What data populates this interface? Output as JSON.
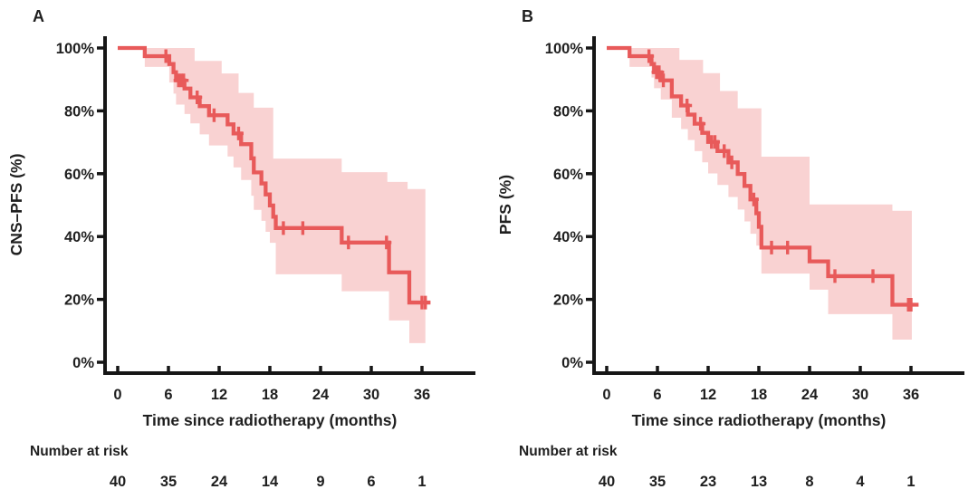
{
  "chart_data": {
    "type": "line",
    "subtype": "kaplan_meier_survival_with_confidence_band",
    "grid": false,
    "legend": "none",
    "colors": {
      "curve": "#E85A5A",
      "band": "#F9D2D2",
      "axis": "#161616",
      "text": "#1F1F1F"
    },
    "x_axis": {
      "ticks": [
        0,
        6,
        12,
        18,
        24,
        30,
        36
      ],
      "range": [
        0,
        42
      ]
    },
    "y_axis": {
      "tick_labels": [
        "100%",
        "80%",
        "60%",
        "40%",
        "20%",
        "0%"
      ],
      "tick_values": [
        100,
        80,
        60,
        40,
        20,
        0
      ],
      "range": [
        0,
        100
      ]
    },
    "panels": [
      {
        "label": "A",
        "y_axis_label": "CNS–PFS (%)",
        "x_axis_label": "Time since radiotherapy (months)",
        "number_at_risk_label": "Number at risk",
        "number_at_risk": [
          "40",
          "35",
          "24",
          "14",
          "9",
          "6",
          "1"
        ],
        "x_tick_labels": [
          "0",
          "6",
          "12",
          "18",
          "24",
          "30",
          "36"
        ],
        "steps": [
          [
            3.2,
            97.4
          ],
          [
            6.1,
            94.9
          ],
          [
            6.6,
            92.3
          ],
          [
            6.9,
            89.7
          ],
          [
            7.9,
            87.1
          ],
          [
            8.6,
            84.3
          ],
          [
            9.7,
            81.5
          ],
          [
            10.8,
            78.6
          ],
          [
            13.0,
            75.7
          ],
          [
            13.7,
            72.8
          ],
          [
            14.6,
            69.4
          ],
          [
            15.8,
            64.9
          ],
          [
            16.1,
            60.4
          ],
          [
            17.0,
            56.9
          ],
          [
            17.5,
            53.4
          ],
          [
            18.0,
            49.9
          ],
          [
            18.4,
            46.3
          ],
          [
            18.7,
            42.7
          ],
          [
            26.5,
            38.1
          ],
          [
            32.1,
            28.6
          ],
          [
            34.5,
            19.0
          ]
        ],
        "censors": [
          [
            5.7,
            97.4
          ],
          [
            7.2,
            89.7
          ],
          [
            7.5,
            89.7
          ],
          [
            7.8,
            89.7
          ],
          [
            9.4,
            84.3
          ],
          [
            11.4,
            78.6
          ],
          [
            14.3,
            72.8
          ],
          [
            19.6,
            42.7
          ],
          [
            21.9,
            42.7
          ],
          [
            27.3,
            38.1
          ],
          [
            31.8,
            38.1
          ],
          [
            36.0,
            19.0
          ],
          [
            36.4,
            19.0
          ]
        ],
        "band_upper": [
          [
            3.2,
            100
          ],
          [
            9.1,
            95.9
          ],
          [
            12.3,
            91.9
          ],
          [
            14.3,
            85.7
          ],
          [
            16.1,
            81.0
          ],
          [
            18.4,
            64.8
          ],
          [
            26.5,
            60.5
          ],
          [
            31.9,
            57.4
          ],
          [
            34.3,
            55.1
          ]
        ],
        "band_lower": [
          [
            3.2,
            94.0
          ],
          [
            6.1,
            89.0
          ],
          [
            6.6,
            85.5
          ],
          [
            6.9,
            82.0
          ],
          [
            7.9,
            79.0
          ],
          [
            8.6,
            76.0
          ],
          [
            9.7,
            72.5
          ],
          [
            10.8,
            69.0
          ],
          [
            13.0,
            65.5
          ],
          [
            13.7,
            62.0
          ],
          [
            14.6,
            58.0
          ],
          [
            15.8,
            53.0
          ],
          [
            16.1,
            48.5
          ],
          [
            17.0,
            45.0
          ],
          [
            17.5,
            41.5
          ],
          [
            18.0,
            38.0
          ],
          [
            18.7,
            28.0
          ],
          [
            26.5,
            22.6
          ],
          [
            32.1,
            13.3
          ],
          [
            34.5,
            6.1
          ]
        ],
        "line_end": 37.0,
        "band_end": 36.4
      },
      {
        "label": "B",
        "y_axis_label": "PFS (%)",
        "x_axis_label": "Time since radiotherapy (months)",
        "number_at_risk_label": "Number at risk",
        "number_at_risk": [
          "40",
          "35",
          "23",
          "13",
          "8",
          "4",
          "1"
        ],
        "x_tick_labels": [
          "0",
          "6",
          "12",
          "18",
          "24",
          "30",
          "36"
        ],
        "steps": [
          [
            2.7,
            97.4
          ],
          [
            5.3,
            94.9
          ],
          [
            5.6,
            92.3
          ],
          [
            6.4,
            89.7
          ],
          [
            7.7,
            84.6
          ],
          [
            8.8,
            81.7
          ],
          [
            9.6,
            78.8
          ],
          [
            10.4,
            75.9
          ],
          [
            11.3,
            73.0
          ],
          [
            12.0,
            70.1
          ],
          [
            13.1,
            67.2
          ],
          [
            14.4,
            63.6
          ],
          [
            15.5,
            59.9
          ],
          [
            16.3,
            56.1
          ],
          [
            17.0,
            51.8
          ],
          [
            17.7,
            47.4
          ],
          [
            18.0,
            43.1
          ],
          [
            18.3,
            36.5
          ],
          [
            24.0,
            32.1
          ],
          [
            26.2,
            27.4
          ],
          [
            33.8,
            18.3
          ]
        ],
        "censors": [
          [
            5.0,
            97.4
          ],
          [
            5.9,
            92.3
          ],
          [
            6.2,
            92.3
          ],
          [
            6.7,
            89.7
          ],
          [
            9.5,
            81.7
          ],
          [
            11.1,
            75.9
          ],
          [
            12.4,
            70.1
          ],
          [
            12.8,
            70.1
          ],
          [
            13.9,
            67.2
          ],
          [
            14.8,
            63.6
          ],
          [
            17.4,
            51.8
          ],
          [
            19.5,
            36.5
          ],
          [
            21.4,
            36.5
          ],
          [
            27.0,
            27.4
          ],
          [
            31.5,
            27.4
          ],
          [
            35.7,
            18.3
          ],
          [
            36.0,
            18.3
          ]
        ],
        "band_upper": [
          [
            2.7,
            100
          ],
          [
            8.6,
            96.2
          ],
          [
            11.4,
            92.0
          ],
          [
            13.4,
            86.3
          ],
          [
            15.5,
            80.8
          ],
          [
            18.3,
            65.4
          ],
          [
            24.0,
            50.2
          ],
          [
            33.8,
            48.2
          ]
        ],
        "band_lower": [
          [
            2.7,
            94.0
          ],
          [
            5.3,
            90.6
          ],
          [
            5.6,
            87.2
          ],
          [
            6.4,
            83.6
          ],
          [
            7.7,
            77.8
          ],
          [
            8.8,
            74.2
          ],
          [
            9.6,
            70.7
          ],
          [
            10.4,
            67.2
          ],
          [
            11.3,
            63.6
          ],
          [
            12.0,
            60.1
          ],
          [
            13.1,
            56.4
          ],
          [
            14.4,
            52.6
          ],
          [
            15.5,
            48.6
          ],
          [
            16.3,
            44.8
          ],
          [
            17.0,
            40.9
          ],
          [
            17.7,
            37.1
          ],
          [
            18.3,
            28.2
          ],
          [
            24.0,
            23.1
          ],
          [
            26.2,
            15.3
          ],
          [
            33.8,
            7.2
          ]
        ],
        "line_end": 36.9,
        "band_end": 36.1
      }
    ]
  }
}
